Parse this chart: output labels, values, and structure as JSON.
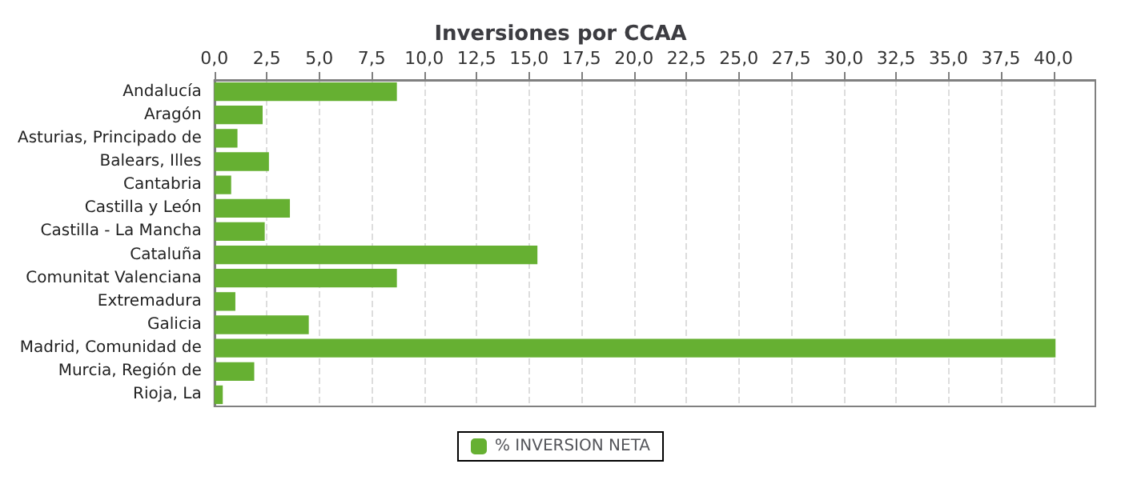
{
  "chart_data": {
    "type": "bar",
    "orientation": "horizontal",
    "title": "Inversiones por CCAA",
    "categories": [
      "Andalucía",
      "Aragón",
      "Asturias, Principado de",
      "Balears, Illes",
      "Cantabria",
      "Castilla y León",
      "Castilla - La Mancha",
      "Cataluña",
      "Comunitat Valenciana",
      "Extremadura",
      "Galicia",
      "Madrid, Comunidad de",
      "Murcia, Región de",
      "Rioja, La"
    ],
    "series": [
      {
        "name": "% INVERSION NETA",
        "color": "#66b032",
        "values": [
          8.7,
          2.3,
          1.1,
          2.6,
          0.8,
          3.6,
          2.4,
          15.4,
          8.7,
          1.0,
          4.5,
          40.1,
          1.9,
          0.4
        ]
      }
    ],
    "xlim": [
      0,
      42
    ],
    "xticks": [
      {
        "value": 0,
        "label": "0,0"
      },
      {
        "value": 2.5,
        "label": "2,5"
      },
      {
        "value": 5,
        "label": "5,0"
      },
      {
        "value": 7.5,
        "label": "7,5"
      },
      {
        "value": 10,
        "label": "10,0"
      },
      {
        "value": 12.5,
        "label": "12,5"
      },
      {
        "value": 15,
        "label": "15,0"
      },
      {
        "value": 17.5,
        "label": "17,5"
      },
      {
        "value": 20,
        "label": "20,0"
      },
      {
        "value": 22.5,
        "label": "22,5"
      },
      {
        "value": 25,
        "label": "25,0"
      },
      {
        "value": 27.5,
        "label": "27,5"
      },
      {
        "value": 30,
        "label": "30,0"
      },
      {
        "value": 32.5,
        "label": "32,5"
      },
      {
        "value": 35,
        "label": "35,0"
      },
      {
        "value": 37.5,
        "label": "37,5"
      },
      {
        "value": 40,
        "label": "40,0"
      }
    ],
    "grid": "x",
    "legend": "bottom"
  }
}
